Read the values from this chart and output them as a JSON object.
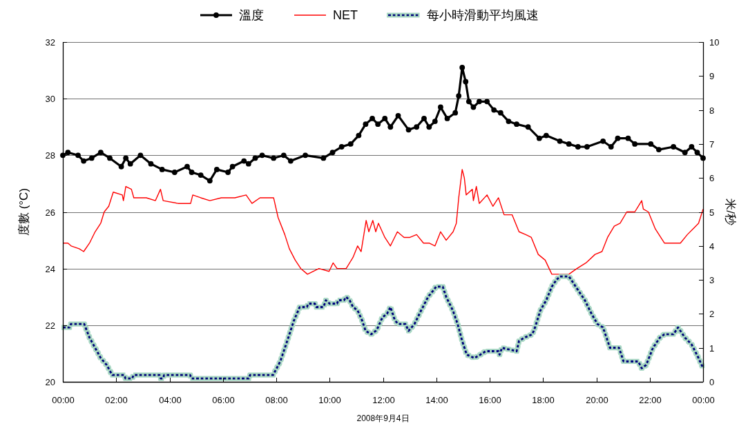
{
  "chart_data": {
    "type": "line",
    "xlabel": "2008年9月4日",
    "ylabel": "度數 (°C)",
    "y2label": "米/秒",
    "xlim": [
      0,
      24
    ],
    "xticks": [
      {
        "value": 0,
        "label": "00:00"
      },
      {
        "value": 2,
        "label": "02:00"
      },
      {
        "value": 4,
        "label": "04:00"
      },
      {
        "value": 6,
        "label": "06:00"
      },
      {
        "value": 8,
        "label": "08:00"
      },
      {
        "value": 10,
        "label": "10:00"
      },
      {
        "value": 12,
        "label": "12:00"
      },
      {
        "value": 14,
        "label": "14:00"
      },
      {
        "value": 16,
        "label": "16:00"
      },
      {
        "value": 18,
        "label": "18:00"
      },
      {
        "value": 20,
        "label": "20:00"
      },
      {
        "value": 22,
        "label": "22:00"
      },
      {
        "value": 24,
        "label": "00:00"
      }
    ],
    "ylim": [
      20,
      32
    ],
    "yticks": [
      20,
      22,
      24,
      26,
      28,
      30,
      32
    ],
    "y2lim": [
      0,
      10
    ],
    "y2ticks": [
      0,
      1,
      2,
      3,
      4,
      5,
      6,
      7,
      8,
      9,
      10
    ],
    "grid": "y",
    "legend": "top",
    "series": [
      {
        "name": "溫度",
        "color": "#000000",
        "marker": "circle",
        "line_style": "solid",
        "x": [
          0,
          0.19,
          0.57,
          0.78,
          1.08,
          1.42,
          1.76,
          2.19,
          2.36,
          2.53,
          2.91,
          3.3,
          3.72,
          4.19,
          4.66,
          4.83,
          5.17,
          5.51,
          5.77,
          6.19,
          6.36,
          6.79,
          6.96,
          7.21,
          7.47,
          7.9,
          8.28,
          8.54,
          9.09,
          9.77,
          10.11,
          10.45,
          10.79,
          11.09,
          11.35,
          11.6,
          11.81,
          12.07,
          12.28,
          12.57,
          12.96,
          13.26,
          13.54,
          13.73,
          13.95,
          14.16,
          14.41,
          14.71,
          14.84,
          14.97,
          15.1,
          15.22,
          15.39,
          15.61,
          15.9,
          16.16,
          16.41,
          16.71,
          17.01,
          17.44,
          17.86,
          18.12,
          18.63,
          18.97,
          19.31,
          19.65,
          20.25,
          20.55,
          20.8,
          21.19,
          21.44,
          22.04,
          22.34,
          22.89,
          23.32,
          23.57,
          23.78,
          24
        ],
        "values": [
          28.0,
          28.1,
          28.0,
          27.8,
          27.9,
          28.1,
          27.9,
          27.6,
          27.9,
          27.7,
          28.0,
          27.7,
          27.5,
          27.4,
          27.6,
          27.4,
          27.3,
          27.1,
          27.5,
          27.4,
          27.6,
          27.8,
          27.7,
          27.9,
          28.0,
          27.9,
          28.0,
          27.8,
          28.0,
          27.9,
          28.1,
          28.3,
          28.4,
          28.7,
          29.1,
          29.3,
          29.1,
          29.3,
          29.0,
          29.4,
          28.9,
          29.0,
          29.3,
          29.0,
          29.2,
          29.7,
          29.3,
          29.5,
          30.1,
          31.1,
          30.6,
          29.9,
          29.7,
          29.9,
          29.9,
          29.6,
          29.5,
          29.2,
          29.1,
          29.0,
          28.6,
          28.7,
          28.5,
          28.4,
          28.3,
          28.3,
          28.5,
          28.3,
          28.6,
          28.6,
          28.4,
          28.4,
          28.2,
          28.3,
          28.1,
          28.3,
          28.1,
          27.9
        ]
      },
      {
        "name": "NET",
        "color": "#ff0000",
        "marker": "none",
        "line_style": "solid",
        "x": [
          0.02,
          0.19,
          0.31,
          0.61,
          0.78,
          1.0,
          1.21,
          1.42,
          1.55,
          1.72,
          1.89,
          2.23,
          2.27,
          2.36,
          2.57,
          2.66,
          3.13,
          3.47,
          3.66,
          3.76,
          4.32,
          4.79,
          4.87,
          5.17,
          5.51,
          5.94,
          6.45,
          6.87,
          7.09,
          7.39,
          7.9,
          8.07,
          8.32,
          8.49,
          8.71,
          8.92,
          9.17,
          9.6,
          9.98,
          10.13,
          10.28,
          10.62,
          10.88,
          11.05,
          11.18,
          11.37,
          11.47,
          11.62,
          11.73,
          11.83,
          12.07,
          12.28,
          12.54,
          12.79,
          13.01,
          13.26,
          13.52,
          13.73,
          13.95,
          14.16,
          14.37,
          14.63,
          14.75,
          14.84,
          14.97,
          15.05,
          15.12,
          15.35,
          15.39,
          15.5,
          15.61,
          15.9,
          16.12,
          16.33,
          16.54,
          16.84,
          17.1,
          17.35,
          17.56,
          17.82,
          18.08,
          18.33,
          18.63,
          18.97,
          19.27,
          19.61,
          19.95,
          20.21,
          20.42,
          20.67,
          20.89,
          21.14,
          21.44,
          21.57,
          21.7,
          21.76,
          21.95,
          22.21,
          22.55,
          22.89,
          23.15,
          23.41,
          23.62,
          23.83,
          24
        ],
        "values": [
          24.9,
          24.9,
          24.8,
          24.7,
          24.6,
          24.9,
          25.3,
          25.6,
          26.0,
          26.2,
          26.7,
          26.6,
          26.4,
          26.9,
          26.8,
          26.5,
          26.5,
          26.4,
          26.8,
          26.4,
          26.3,
          26.3,
          26.6,
          26.5,
          26.4,
          26.5,
          26.5,
          26.6,
          26.3,
          26.5,
          26.5,
          25.8,
          25.2,
          24.7,
          24.3,
          24.0,
          23.8,
          24.0,
          23.9,
          24.2,
          24.0,
          24.0,
          24.4,
          24.8,
          24.6,
          25.7,
          25.3,
          25.7,
          25.3,
          25.6,
          25.1,
          24.8,
          25.3,
          25.1,
          25.1,
          25.2,
          24.9,
          24.9,
          24.8,
          25.3,
          25.0,
          25.3,
          25.6,
          26.5,
          27.5,
          27.2,
          26.6,
          26.8,
          26.4,
          26.9,
          26.3,
          26.6,
          26.2,
          26.5,
          25.9,
          25.9,
          25.3,
          25.2,
          25.1,
          24.5,
          24.3,
          23.8,
          23.8,
          23.8,
          24.0,
          24.2,
          24.5,
          24.6,
          25.1,
          25.5,
          25.6,
          26.0,
          26.0,
          26.2,
          26.4,
          26.1,
          26.0,
          25.4,
          24.9,
          24.9,
          24.9,
          25.2,
          25.4,
          25.6,
          26.1
        ]
      },
      {
        "name": "每小時滑動平均風速",
        "color": "#000080",
        "marker": "none",
        "line_style": "dashed",
        "axis": "y2",
        "x": [
          0,
          0.25,
          0.3,
          0.8,
          0.85,
          1.0,
          1.21,
          1.42,
          1.64,
          1.85,
          2.3,
          2.35,
          2.6,
          2.65,
          3.62,
          3.67,
          3.75,
          3.8,
          4.77,
          4.82,
          6.97,
          7.02,
          7.88,
          8.15,
          8.41,
          8.66,
          8.88,
          9.15,
          9.2,
          9.45,
          9.5,
          9.77,
          9.86,
          10.0,
          10.28,
          10.32,
          10.54,
          10.62,
          10.75,
          10.88,
          11.05,
          11.22,
          11.35,
          11.56,
          11.73,
          11.81,
          11.98,
          12.15,
          12.28,
          12.45,
          12.58,
          12.84,
          12.96,
          13.18,
          13.43,
          13.69,
          13.9,
          13.99,
          14.24,
          14.37,
          14.62,
          14.8,
          14.97,
          15.14,
          15.43,
          15.65,
          15.85,
          16.33,
          16.37,
          16.46,
          17.01,
          17.1,
          17.3,
          17.6,
          17.7,
          17.9,
          18.12,
          18.33,
          18.5,
          18.63,
          18.97,
          19.06,
          19.31,
          19.57,
          19.82,
          20.04,
          20.25,
          20.51,
          20.85,
          21.02,
          21.57,
          21.7,
          21.87,
          22.12,
          22.38,
          22.55,
          22.89,
          23.06,
          23.15,
          23.32,
          23.57,
          23.83,
          24
        ],
        "values": [
          1.6,
          1.6,
          1.7,
          1.7,
          1.6,
          1.3,
          1.0,
          0.7,
          0.5,
          0.2,
          0.2,
          0.1,
          0.1,
          0.2,
          0.2,
          0.1,
          0.1,
          0.2,
          0.2,
          0.1,
          0.1,
          0.2,
          0.2,
          0.6,
          1.2,
          1.8,
          2.2,
          2.2,
          2.3,
          2.3,
          2.2,
          2.2,
          2.4,
          2.3,
          2.3,
          2.4,
          2.4,
          2.5,
          2.4,
          2.2,
          2.1,
          1.8,
          1.5,
          1.4,
          1.5,
          1.6,
          1.9,
          2.0,
          2.2,
          1.8,
          1.7,
          1.7,
          1.5,
          1.7,
          2.1,
          2.5,
          2.7,
          2.8,
          2.8,
          2.5,
          2.1,
          1.7,
          1.2,
          0.8,
          0.7,
          0.8,
          0.9,
          0.9,
          0.8,
          1.0,
          0.9,
          1.2,
          1.3,
          1.4,
          1.6,
          2.1,
          2.4,
          2.8,
          3.0,
          3.1,
          3.1,
          3.0,
          2.7,
          2.4,
          2.0,
          1.7,
          1.6,
          1.0,
          1.0,
          0.6,
          0.6,
          0.4,
          0.5,
          1.0,
          1.3,
          1.4,
          1.4,
          1.6,
          1.5,
          1.3,
          1.1,
          0.7,
          0.4
        ]
      }
    ]
  }
}
